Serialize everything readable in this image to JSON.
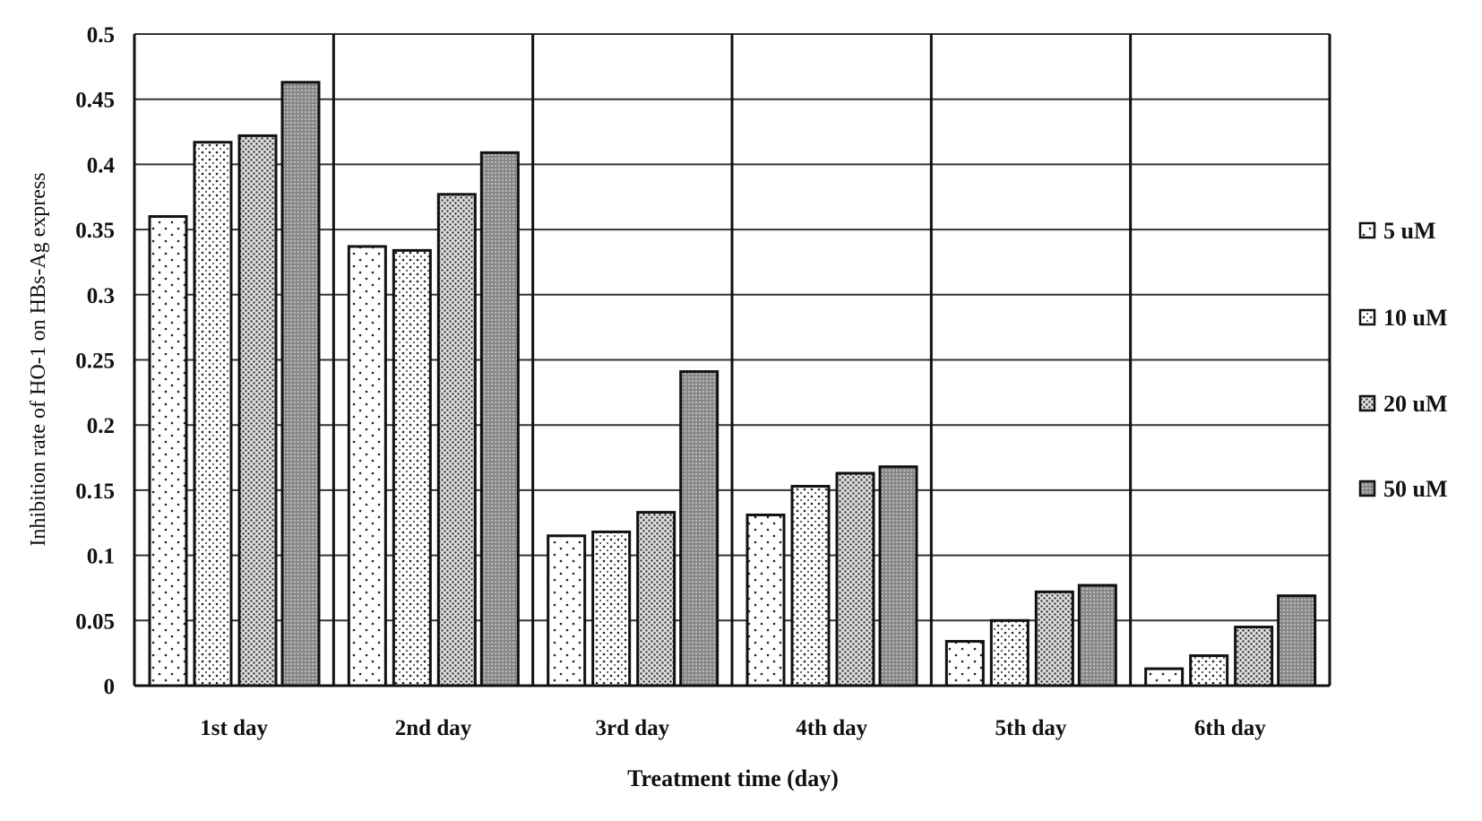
{
  "chart_data": {
    "type": "bar",
    "title": "",
    "xlabel": "Treatment time (day)",
    "ylabel": "Inhibition rate of HO-1 on HBs-Ag express",
    "ylim": [
      0,
      0.5
    ],
    "yticks": [
      "0",
      "0.05",
      "0.1",
      "0.15",
      "0.2",
      "0.25",
      "0.3",
      "0.35",
      "0.4",
      "0.45",
      "0.5"
    ],
    "grid": true,
    "legend_position": "right",
    "categories": [
      "1st day",
      "2nd day",
      "3rd day",
      "4th day",
      "5th day",
      "6th day"
    ],
    "series": [
      {
        "name": "5 uM",
        "values": [
          0.36,
          0.337,
          0.115,
          0.131,
          0.034,
          0.013
        ]
      },
      {
        "name": "10 uM",
        "values": [
          0.417,
          0.334,
          0.118,
          0.153,
          0.05,
          0.023
        ]
      },
      {
        "name": "20 uM",
        "values": [
          0.422,
          0.377,
          0.133,
          0.163,
          0.072,
          0.045
        ]
      },
      {
        "name": "50 uM",
        "values": [
          0.463,
          0.409,
          0.241,
          0.168,
          0.077,
          0.069
        ]
      }
    ]
  }
}
